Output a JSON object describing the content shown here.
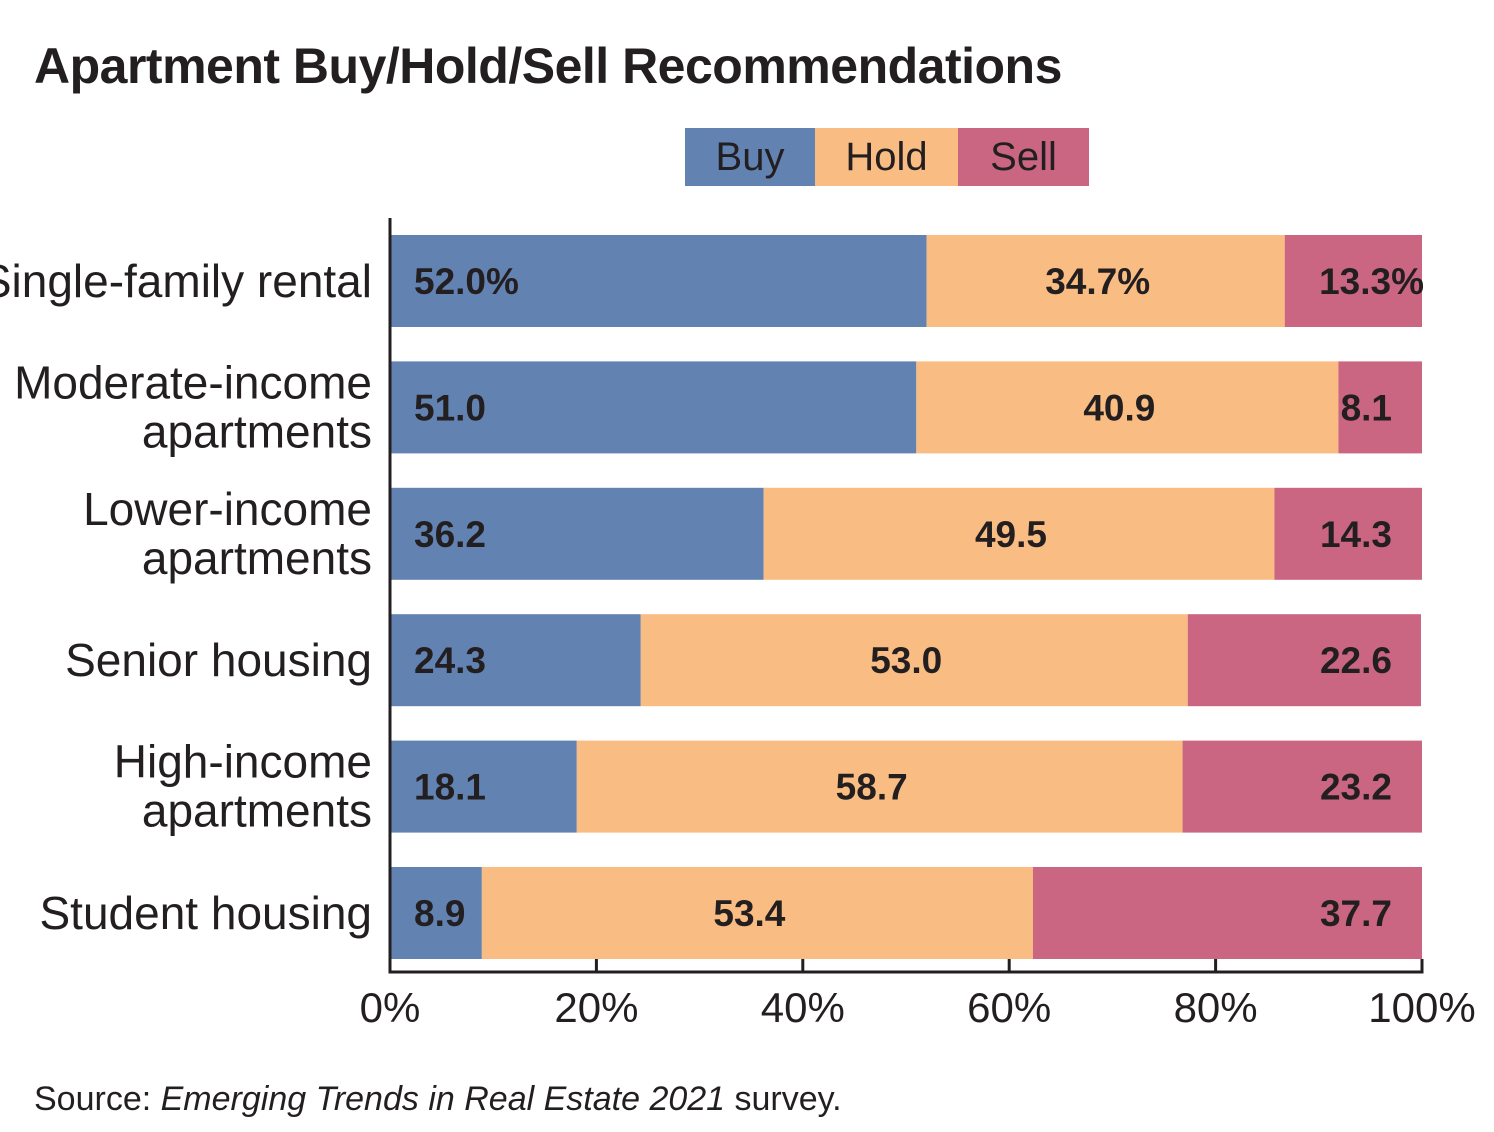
{
  "chart_data": {
    "type": "bar",
    "orientation": "horizontal",
    "stacked": true,
    "title": "Apartment Buy/Hold/Sell Recommendations",
    "categories": [
      [
        "Single-family rental"
      ],
      [
        "Moderate-income",
        "apartments"
      ],
      [
        "Lower-income",
        "apartments"
      ],
      [
        "Senior housing"
      ],
      [
        "High-income",
        "apartments"
      ],
      [
        "Student housing"
      ]
    ],
    "series": [
      {
        "name": "Buy",
        "color": "#6283b2",
        "values": [
          52.0,
          51.0,
          36.2,
          24.3,
          18.1,
          8.9
        ]
      },
      {
        "name": "Hold",
        "color": "#f9bc83",
        "values": [
          34.7,
          40.9,
          49.5,
          53.0,
          58.7,
          53.4
        ]
      },
      {
        "name": "Sell",
        "color": "#ca6682",
        "values": [
          13.3,
          8.1,
          14.3,
          22.6,
          23.2,
          37.7
        ]
      }
    ],
    "value_labels": [
      [
        "52.0%",
        "34.7%",
        "13.3%"
      ],
      [
        "51.0",
        "40.9",
        "8.1"
      ],
      [
        "36.2",
        "49.5",
        "14.3"
      ],
      [
        "24.3",
        "53.0",
        "22.6"
      ],
      [
        "18.1",
        "58.7",
        "23.2"
      ],
      [
        "8.9",
        "53.4",
        "37.7"
      ]
    ],
    "xlim": [
      0,
      100
    ],
    "x_ticks": [
      0,
      20,
      40,
      60,
      80,
      100
    ],
    "x_tick_labels": [
      "0%",
      "20%",
      "40%",
      "60%",
      "80%",
      "100%"
    ],
    "xlabel": "",
    "ylabel": "",
    "grid": false,
    "legend_position": "top-center"
  },
  "legend": {
    "buy": "Buy",
    "hold": "Hold",
    "sell": "Sell"
  },
  "source": {
    "prefix": "Source: ",
    "publication": "Emerging Trends in Real Estate 2021",
    "suffix": " survey."
  }
}
